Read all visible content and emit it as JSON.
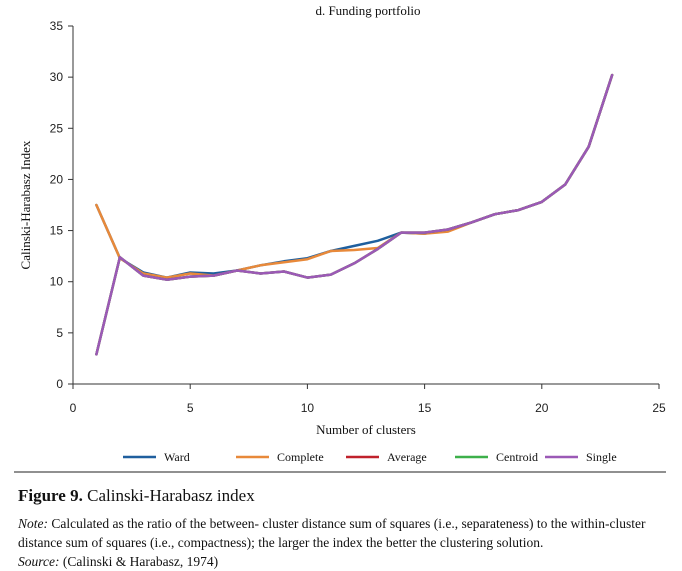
{
  "chart_data": {
    "type": "line",
    "title": "d. Funding portfolio",
    "xlabel": "Number of clusters",
    "ylabel": "Calinski-Harabasz Index",
    "xlim": [
      0,
      25
    ],
    "ylim": [
      0,
      35
    ],
    "xticks": [
      0,
      5,
      10,
      15,
      20,
      25
    ],
    "yticks": [
      0,
      5,
      10,
      15,
      20,
      25,
      30,
      35
    ],
    "grid": false,
    "legend": "bottom",
    "series": [
      {
        "name": "Ward",
        "color": "#1f5f9e",
        "x": [
          1,
          2,
          3,
          4,
          5,
          6,
          7,
          8,
          9,
          10,
          11,
          12,
          13,
          14,
          15,
          16,
          17,
          18,
          19,
          20,
          21,
          22,
          23
        ],
        "y": [
          17.5,
          12.3,
          10.9,
          10.4,
          10.9,
          10.8,
          11.1,
          11.6,
          12.0,
          12.3,
          13.0,
          13.5,
          14.0,
          14.8,
          14.7,
          15.1,
          15.8,
          16.6,
          17.0,
          17.8,
          19.5,
          23.2,
          30.2
        ]
      },
      {
        "name": "Complete",
        "color": "#e8893a",
        "x": [
          1,
          2,
          3,
          4,
          5,
          6,
          7,
          8,
          9,
          10,
          11,
          12,
          13,
          14,
          15,
          16,
          17,
          18,
          19,
          20,
          21,
          22,
          23
        ],
        "y": [
          17.5,
          12.3,
          10.8,
          10.4,
          10.8,
          10.6,
          11.1,
          11.6,
          11.9,
          12.2,
          13.0,
          13.1,
          13.3,
          14.8,
          14.7,
          14.9,
          15.8,
          16.6,
          17.0,
          17.8,
          19.5,
          23.2,
          30.2
        ]
      },
      {
        "name": "Average",
        "color": "#c0212b",
        "x": [
          1,
          2,
          3,
          4,
          5,
          6,
          7,
          8,
          9,
          10,
          11,
          12,
          13,
          14,
          15,
          16,
          17,
          18,
          19,
          20,
          21,
          22,
          23
        ],
        "y": [
          2.9,
          12.4,
          10.6,
          10.2,
          10.5,
          10.6,
          11.1,
          10.8,
          11.0,
          10.4,
          10.7,
          11.8,
          13.2,
          14.8,
          14.8,
          15.1,
          15.8,
          16.6,
          17.0,
          17.8,
          19.5,
          23.2,
          30.2
        ]
      },
      {
        "name": "Centroid",
        "color": "#3db04a",
        "x": [
          1,
          2,
          3,
          4,
          5,
          6,
          7,
          8,
          9,
          10,
          11,
          12,
          13,
          14,
          15,
          16,
          17,
          18,
          19,
          20,
          21,
          22,
          23
        ],
        "y": [
          2.9,
          12.4,
          10.6,
          10.2,
          10.5,
          10.6,
          11.1,
          10.8,
          11.0,
          10.4,
          10.7,
          11.8,
          13.2,
          14.8,
          14.8,
          15.1,
          15.8,
          16.6,
          17.0,
          17.8,
          19.5,
          23.2,
          30.2
        ]
      },
      {
        "name": "Single",
        "color": "#9b59b6",
        "x": [
          1,
          2,
          3,
          4,
          5,
          6,
          7,
          8,
          9,
          10,
          11,
          12,
          13,
          14,
          15,
          16,
          17,
          18,
          19,
          20,
          21,
          22,
          23
        ],
        "y": [
          2.9,
          12.4,
          10.6,
          10.2,
          10.5,
          10.6,
          11.1,
          10.8,
          11.0,
          10.4,
          10.7,
          11.8,
          13.2,
          14.8,
          14.8,
          15.1,
          15.8,
          16.6,
          17.0,
          17.8,
          19.5,
          23.2,
          30.2
        ]
      }
    ]
  },
  "caption": {
    "figure_number": "Figure 9.",
    "figure_title": "Calinski-Harabasz index",
    "note_label": "Note:",
    "note_text": "Calculated as the ratio of the between- cluster distance sum of squares (i.e., separateness) to the within-cluster distance sum of squares (i.e., compactness); the larger the index the better the clustering solution.",
    "source_label": "Source:",
    "source_text": "(Calinski & Harabasz, 1974)"
  }
}
